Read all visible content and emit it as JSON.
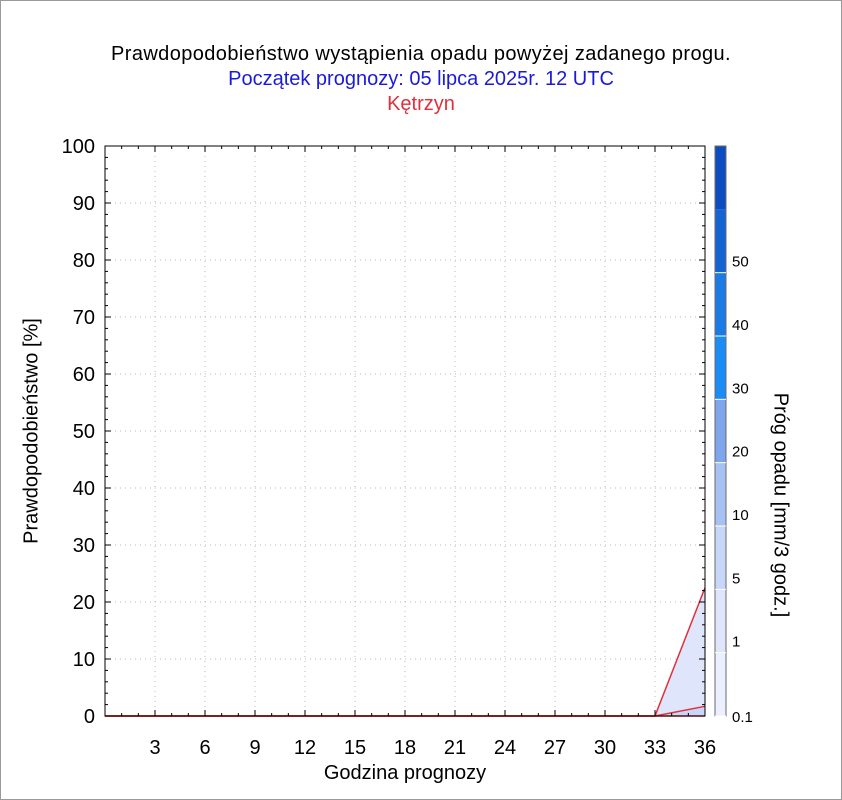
{
  "chart_data": {
    "type": "area",
    "title": "Prawdopodobieństwo wystąpienia opadu powyżej zadanego progu.",
    "subtitle": "Początek prognozy: 05 lipca 2025r. 12 UTC",
    "location": "Kętrzyn",
    "xlabel": "Godzina prognozy",
    "ylabel": "Prawdopodobieństwo [%]",
    "xlim": [
      0,
      36
    ],
    "ylim": [
      0,
      100
    ],
    "x_ticks": [
      "3",
      "6",
      "9",
      "12",
      "15",
      "18",
      "21",
      "24",
      "27",
      "30",
      "33",
      "36"
    ],
    "y_ticks": [
      "0",
      "10",
      "20",
      "30",
      "40",
      "50",
      "60",
      "70",
      "80",
      "90",
      "100"
    ],
    "grid": true,
    "x": [
      0,
      3,
      6,
      9,
      12,
      15,
      18,
      21,
      24,
      27,
      30,
      33,
      36
    ],
    "series": [
      {
        "name": "0.1",
        "color": "#dfe6fb",
        "values": [
          0,
          0,
          0,
          0,
          0,
          0,
          0,
          0,
          0,
          0,
          0,
          0,
          22.5
        ]
      },
      {
        "name": "1",
        "color": "#c8d6f7",
        "values": [
          0,
          0,
          0,
          0,
          0,
          0,
          0,
          0,
          0,
          0,
          0,
          0,
          1.7
        ]
      },
      {
        "name": "5",
        "color": "#a7c1f2",
        "values": [
          0,
          0,
          0,
          0,
          0,
          0,
          0,
          0,
          0,
          0,
          0,
          0,
          0
        ]
      },
      {
        "name": "10",
        "color": "#7fa6ec",
        "values": [
          0,
          0,
          0,
          0,
          0,
          0,
          0,
          0,
          0,
          0,
          0,
          0,
          0
        ]
      },
      {
        "name": "20",
        "color": "#1a8cf5",
        "values": [
          0,
          0,
          0,
          0,
          0,
          0,
          0,
          0,
          0,
          0,
          0,
          0,
          0
        ]
      },
      {
        "name": "30",
        "color": "#1a7ae6",
        "values": [
          0,
          0,
          0,
          0,
          0,
          0,
          0,
          0,
          0,
          0,
          0,
          0,
          0
        ]
      },
      {
        "name": "40",
        "color": "#1463d4",
        "values": [
          0,
          0,
          0,
          0,
          0,
          0,
          0,
          0,
          0,
          0,
          0,
          0,
          0
        ]
      },
      {
        "name": "50",
        "color": "#0d4cc0",
        "values": [
          0,
          0,
          0,
          0,
          0,
          0,
          0,
          0,
          0,
          0,
          0,
          0,
          0
        ]
      }
    ],
    "line_color": "#e0303a",
    "colorbar": {
      "label": "Próg opadu [mm/3 godz.]",
      "tick_labels": [
        "0.1",
        "1",
        "5",
        "10",
        "20",
        "30",
        "40",
        "50"
      ],
      "colors": [
        "#ebefff",
        "#dfe6fb",
        "#c8d6f7",
        "#a7c1f2",
        "#7fa6ec",
        "#1a8cf5",
        "#1a7ae6",
        "#1463d4",
        "#0d4cc0"
      ]
    }
  }
}
